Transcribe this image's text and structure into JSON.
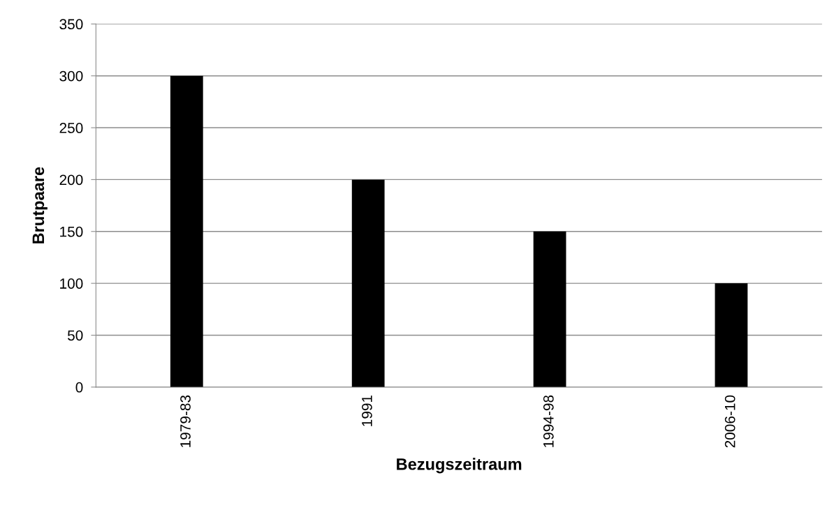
{
  "chart_data": {
    "type": "bar",
    "xlabel": "Bezugszeitraum",
    "ylabel": "Brutpaare",
    "categories": [
      "1979-83",
      "1991",
      "1994-98",
      "2006-10"
    ],
    "values": [
      300,
      200,
      150,
      100
    ],
    "color": "#000000",
    "ylim": [
      0,
      350
    ],
    "yticks": [
      0,
      50,
      100,
      150,
      200,
      250,
      300,
      350
    ],
    "grid": "y",
    "legend": false
  }
}
